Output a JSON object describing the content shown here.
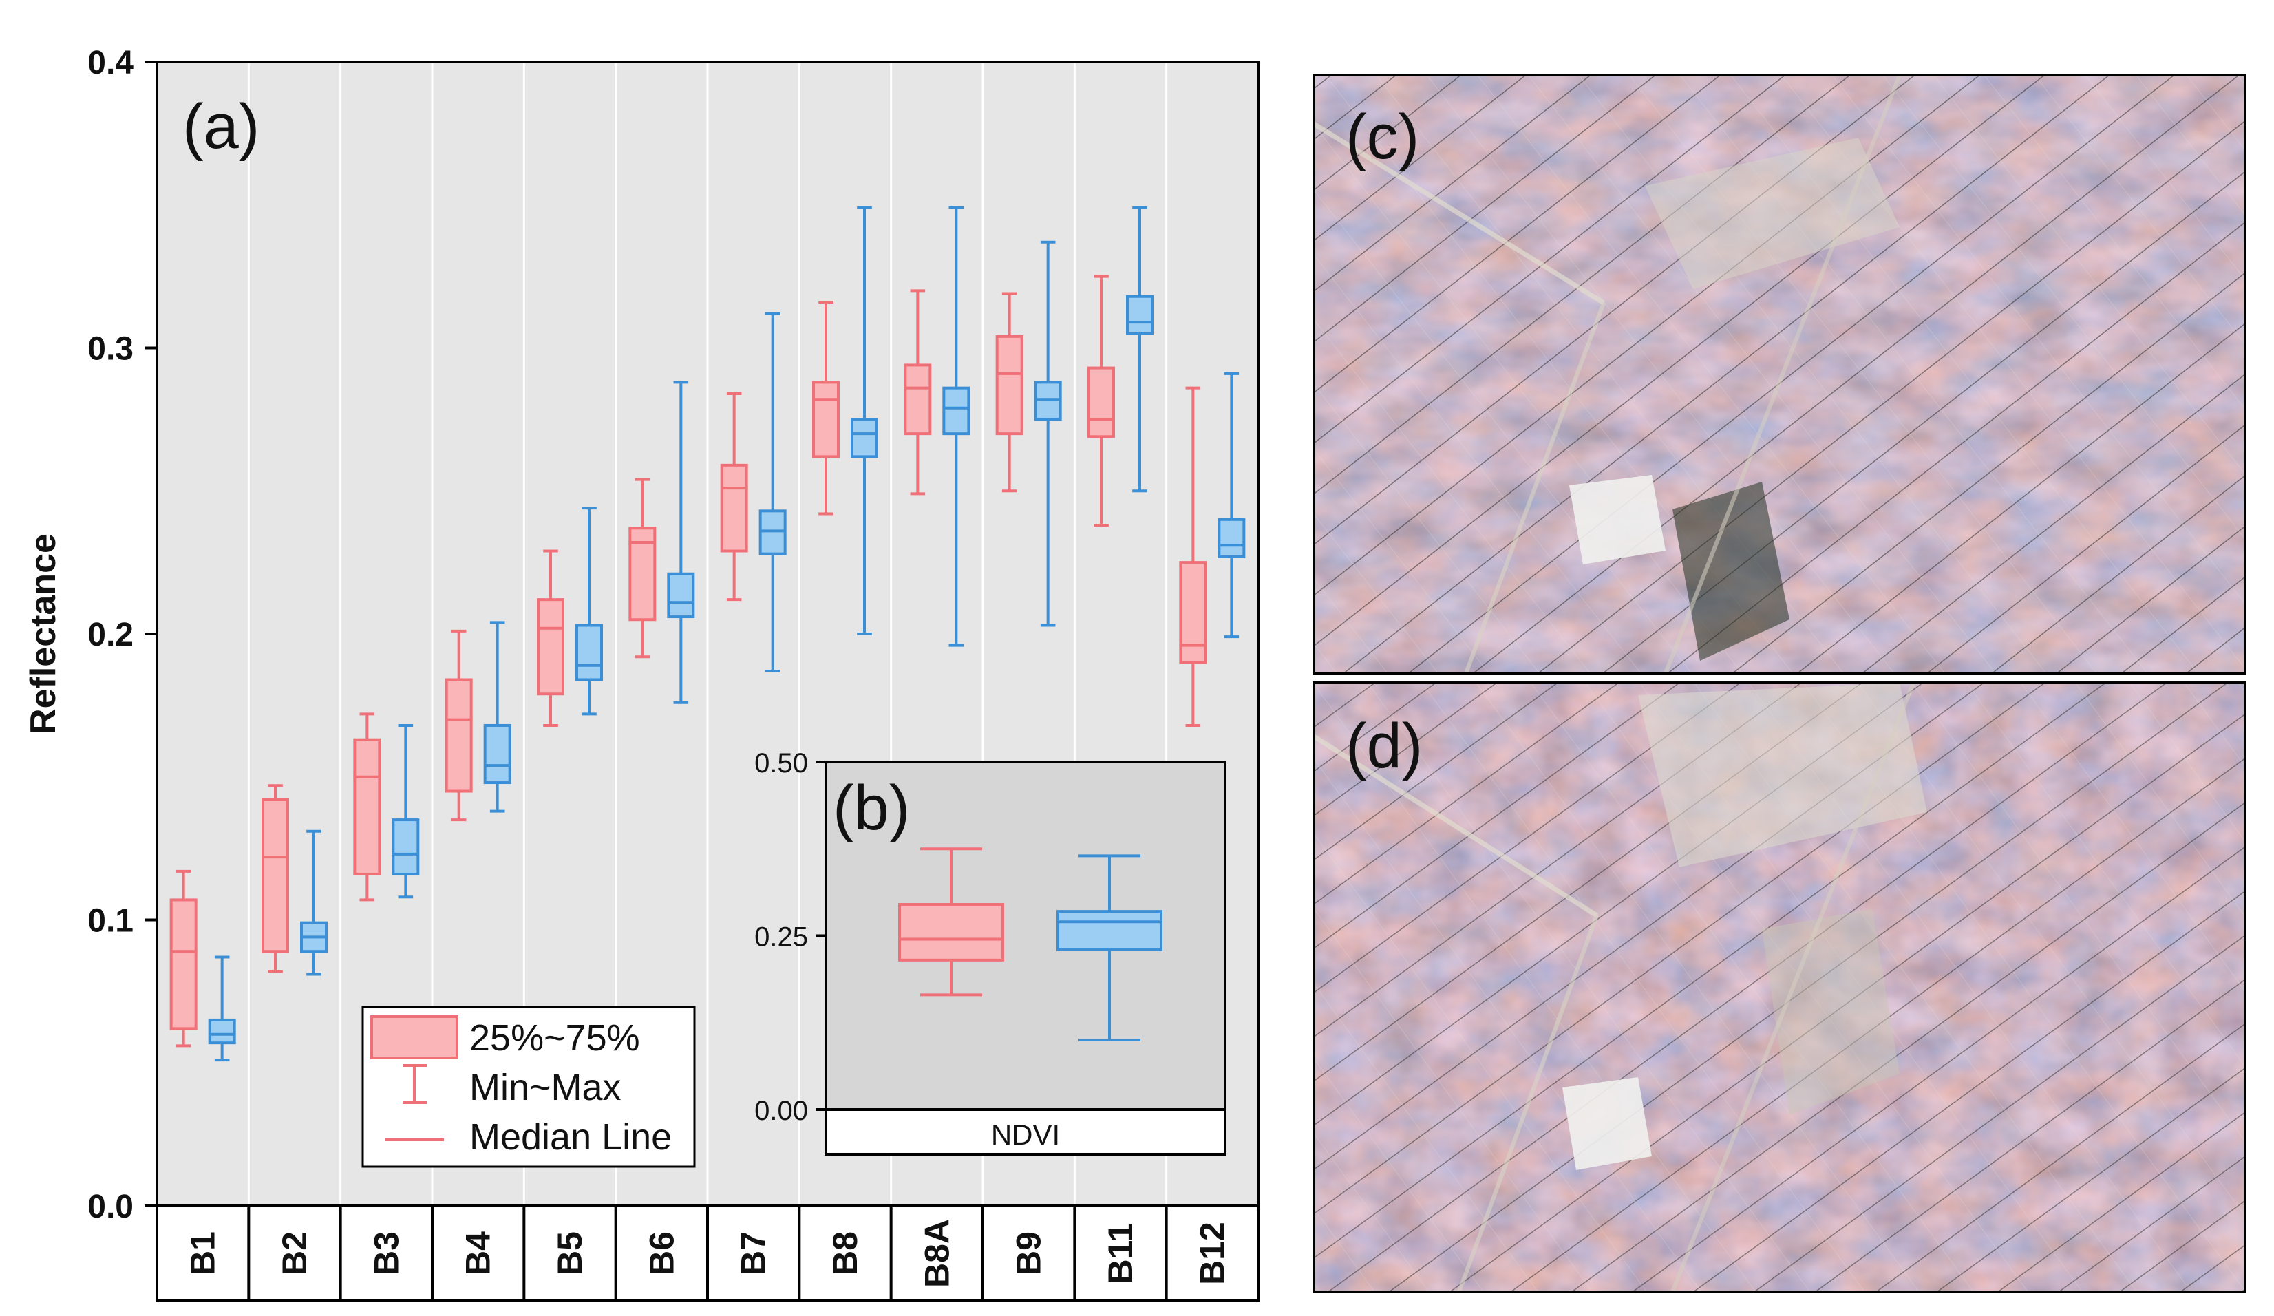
{
  "chart_data": [
    {
      "panel": "(a)",
      "type": "boxplot",
      "ylabel": "Reflectance",
      "ylim": [
        0.0,
        0.4
      ],
      "yticks": [
        "0.0",
        "0.1",
        "0.2",
        "0.3",
        "0.4"
      ],
      "grid": "vertical separators between categories",
      "categories": [
        "B1",
        "B2",
        "B3",
        "B4",
        "B5",
        "B6",
        "B7",
        "B8",
        "B8A",
        "B9",
        "B11",
        "B12"
      ],
      "series": [
        {
          "name": "red",
          "color": "#f07078",
          "fill": "#f9b5b8",
          "boxes": [
            {
              "min": 0.056,
              "q1": 0.062,
              "median": 0.089,
              "q3": 0.107,
              "max": 0.117
            },
            {
              "min": 0.082,
              "q1": 0.089,
              "median": 0.122,
              "q3": 0.142,
              "max": 0.147
            },
            {
              "min": 0.107,
              "q1": 0.116,
              "median": 0.15,
              "q3": 0.163,
              "max": 0.172
            },
            {
              "min": 0.135,
              "q1": 0.145,
              "median": 0.17,
              "q3": 0.184,
              "max": 0.201
            },
            {
              "min": 0.168,
              "q1": 0.179,
              "median": 0.202,
              "q3": 0.212,
              "max": 0.229
            },
            {
              "min": 0.192,
              "q1": 0.205,
              "median": 0.232,
              "q3": 0.237,
              "max": 0.254
            },
            {
              "min": 0.212,
              "q1": 0.229,
              "median": 0.251,
              "q3": 0.259,
              "max": 0.284
            },
            {
              "min": 0.242,
              "q1": 0.262,
              "median": 0.282,
              "q3": 0.288,
              "max": 0.316
            },
            {
              "min": 0.249,
              "q1": 0.27,
              "median": 0.286,
              "q3": 0.294,
              "max": 0.32
            },
            {
              "min": 0.25,
              "q1": 0.27,
              "median": 0.291,
              "q3": 0.304,
              "max": 0.319
            },
            {
              "min": 0.238,
              "q1": 0.269,
              "median": 0.275,
              "q3": 0.293,
              "max": 0.325
            },
            {
              "min": 0.168,
              "q1": 0.19,
              "median": 0.196,
              "q3": 0.225,
              "max": 0.286
            }
          ]
        },
        {
          "name": "blue",
          "color": "#3a8fd6",
          "fill": "#9ccdf2",
          "boxes": [
            {
              "min": 0.051,
              "q1": 0.057,
              "median": 0.06,
              "q3": 0.065,
              "max": 0.087
            },
            {
              "min": 0.081,
              "q1": 0.089,
              "median": 0.094,
              "q3": 0.099,
              "max": 0.131
            },
            {
              "min": 0.108,
              "q1": 0.116,
              "median": 0.123,
              "q3": 0.135,
              "max": 0.168
            },
            {
              "min": 0.138,
              "q1": 0.148,
              "median": 0.154,
              "q3": 0.168,
              "max": 0.204
            },
            {
              "min": 0.172,
              "q1": 0.184,
              "median": 0.189,
              "q3": 0.203,
              "max": 0.244
            },
            {
              "min": 0.176,
              "q1": 0.206,
              "median": 0.211,
              "q3": 0.221,
              "max": 0.288
            },
            {
              "min": 0.187,
              "q1": 0.228,
              "median": 0.236,
              "q3": 0.243,
              "max": 0.312
            },
            {
              "min": 0.2,
              "q1": 0.262,
              "median": 0.27,
              "q3": 0.275,
              "max": 0.349
            },
            {
              "min": 0.196,
              "q1": 0.27,
              "median": 0.279,
              "q3": 0.286,
              "max": 0.349
            },
            {
              "min": 0.203,
              "q1": 0.275,
              "median": 0.282,
              "q3": 0.288,
              "max": 0.337
            },
            {
              "min": 0.25,
              "q1": 0.305,
              "median": 0.309,
              "q3": 0.318,
              "max": 0.349
            },
            {
              "min": 0.199,
              "q1": 0.227,
              "median": 0.231,
              "q3": 0.24,
              "max": 0.291
            }
          ]
        }
      ],
      "legend": {
        "placement": "bottom-left",
        "entries": [
          "25%~75%",
          "Min~Max",
          "Median Line"
        ]
      }
    },
    {
      "panel": "(b)",
      "type": "boxplot",
      "xlabel": "NDVI",
      "ylim": [
        0.0,
        0.5
      ],
      "yticks": [
        "0.00",
        "0.25",
        "0.50"
      ],
      "series": [
        {
          "name": "red",
          "color": "#f07078",
          "fill": "#f9b5b8",
          "boxes": [
            {
              "min": 0.165,
              "q1": 0.215,
              "median": 0.245,
              "q3": 0.295,
              "max": 0.375
            }
          ]
        },
        {
          "name": "blue",
          "color": "#3a8fd6",
          "fill": "#9ccdf2",
          "boxes": [
            {
              "min": 0.1,
              "q1": 0.23,
              "median": 0.27,
              "q3": 0.285,
              "max": 0.365
            }
          ]
        }
      ]
    }
  ],
  "images": [
    {
      "label": "(c)",
      "content": "satellite image of agricultural field parcels"
    },
    {
      "label": "(d)",
      "content": "satellite image of agricultural field parcels"
    }
  ]
}
